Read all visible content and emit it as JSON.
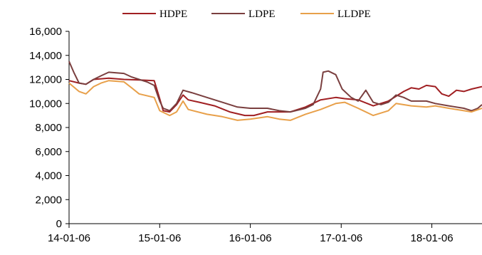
{
  "chart_data": {
    "type": "line",
    "title": "",
    "xlabel": "",
    "ylabel": "",
    "x_tick_labels": [
      "14-01-06",
      "15-01-06",
      "16-01-06",
      "17-01-06",
      "18-01-06"
    ],
    "y_tick_labels": [
      "0",
      "2,000",
      "4,000",
      "6,000",
      "8,000",
      "10,000",
      "12,000",
      "14,000",
      "16,000"
    ],
    "x_range": [
      "14-01-06",
      "18-07-27"
    ],
    "ylim": [
      0,
      16000
    ],
    "grid": false,
    "legend_position": "top-center",
    "series": [
      {
        "name": "HDPE",
        "color": "#a01f22",
        "points": [
          [
            "14-01-06",
            11900
          ],
          [
            "14-02-15",
            11700
          ],
          [
            "14-03-15",
            11600
          ],
          [
            "14-04-15",
            12000
          ],
          [
            "14-06-15",
            12100
          ],
          [
            "14-08-15",
            12000
          ],
          [
            "14-10-15",
            11950
          ],
          [
            "14-12-15",
            11900
          ],
          [
            "15-01-06",
            10400
          ],
          [
            "15-01-20",
            9400
          ],
          [
            "15-02-15",
            9300
          ],
          [
            "15-03-15",
            9900
          ],
          [
            "15-04-10",
            10700
          ],
          [
            "15-05-01",
            10300
          ],
          [
            "15-06-15",
            10100
          ],
          [
            "15-08-15",
            9800
          ],
          [
            "15-10-15",
            9300
          ],
          [
            "15-12-15",
            9000
          ],
          [
            "16-01-20",
            9000
          ],
          [
            "16-03-15",
            9300
          ],
          [
            "16-05-01",
            9300
          ],
          [
            "16-06-15",
            9300
          ],
          [
            "16-08-15",
            9700
          ],
          [
            "16-10-15",
            10300
          ],
          [
            "16-12-15",
            10500
          ],
          [
            "17-01-20",
            10400
          ],
          [
            "17-03-15",
            10300
          ],
          [
            "17-05-15",
            9800
          ],
          [
            "17-07-15",
            10200
          ],
          [
            "17-08-15",
            10600
          ],
          [
            "17-09-15",
            11000
          ],
          [
            "17-10-15",
            11300
          ],
          [
            "17-11-15",
            11200
          ],
          [
            "17-12-15",
            11500
          ],
          [
            "18-01-20",
            11400
          ],
          [
            "18-02-15",
            10800
          ],
          [
            "18-03-15",
            10600
          ],
          [
            "18-04-15",
            11100
          ],
          [
            "18-05-15",
            11000
          ],
          [
            "18-06-15",
            11200
          ],
          [
            "18-07-27",
            11400
          ]
        ]
      },
      {
        "name": "LDPE",
        "color": "#7a3f3f",
        "points": [
          [
            "14-01-06",
            13500
          ],
          [
            "14-01-25",
            12600
          ],
          [
            "14-02-15",
            11700
          ],
          [
            "14-03-15",
            11600
          ],
          [
            "14-04-15",
            12000
          ],
          [
            "14-05-15",
            12300
          ],
          [
            "14-06-15",
            12600
          ],
          [
            "14-08-15",
            12500
          ],
          [
            "14-09-15",
            12200
          ],
          [
            "14-10-15",
            12000
          ],
          [
            "14-11-15",
            11800
          ],
          [
            "14-12-15",
            11500
          ],
          [
            "15-01-06",
            10200
          ],
          [
            "15-01-20",
            9600
          ],
          [
            "15-02-15",
            9400
          ],
          [
            "15-03-15",
            10000
          ],
          [
            "15-04-10",
            11100
          ],
          [
            "15-05-15",
            10900
          ],
          [
            "15-07-15",
            10500
          ],
          [
            "15-09-15",
            10100
          ],
          [
            "15-11-15",
            9700
          ],
          [
            "16-01-06",
            9600
          ],
          [
            "16-03-15",
            9600
          ],
          [
            "16-05-01",
            9400
          ],
          [
            "16-06-15",
            9300
          ],
          [
            "16-08-15",
            9600
          ],
          [
            "16-09-15",
            9900
          ],
          [
            "16-10-15",
            11200
          ],
          [
            "16-10-25",
            12600
          ],
          [
            "16-11-15",
            12700
          ],
          [
            "16-12-15",
            12400
          ],
          [
            "17-01-10",
            11200
          ],
          [
            "17-02-15",
            10500
          ],
          [
            "17-03-15",
            10200
          ],
          [
            "17-04-15",
            11100
          ],
          [
            "17-05-15",
            10100
          ],
          [
            "17-06-15",
            9900
          ],
          [
            "17-07-15",
            10100
          ],
          [
            "17-08-15",
            10700
          ],
          [
            "17-09-15",
            10500
          ],
          [
            "17-10-15",
            10200
          ],
          [
            "17-12-15",
            10200
          ],
          [
            "18-01-20",
            10000
          ],
          [
            "18-03-15",
            9800
          ],
          [
            "18-05-15",
            9600
          ],
          [
            "18-06-15",
            9400
          ],
          [
            "18-07-10",
            9600
          ],
          [
            "18-07-27",
            9900
          ]
        ]
      },
      {
        "name": "LLDPE",
        "color": "#e8a04a",
        "points": [
          [
            "14-01-06",
            11700
          ],
          [
            "14-02-15",
            11000
          ],
          [
            "14-03-15",
            10800
          ],
          [
            "14-04-15",
            11400
          ],
          [
            "14-05-15",
            11700
          ],
          [
            "14-06-15",
            11900
          ],
          [
            "14-08-15",
            11800
          ],
          [
            "14-09-15",
            11300
          ],
          [
            "14-10-15",
            10800
          ],
          [
            "14-12-15",
            10500
          ],
          [
            "15-01-06",
            9400
          ],
          [
            "15-02-15",
            9000
          ],
          [
            "15-03-15",
            9300
          ],
          [
            "15-04-10",
            10200
          ],
          [
            "15-05-01",
            9500
          ],
          [
            "15-07-15",
            9100
          ],
          [
            "15-09-15",
            8900
          ],
          [
            "15-11-15",
            8600
          ],
          [
            "16-01-06",
            8700
          ],
          [
            "16-03-15",
            8900
          ],
          [
            "16-05-01",
            8700
          ],
          [
            "16-06-15",
            8600
          ],
          [
            "16-08-15",
            9100
          ],
          [
            "16-10-15",
            9500
          ],
          [
            "16-12-15",
            10000
          ],
          [
            "17-01-20",
            10100
          ],
          [
            "17-03-15",
            9600
          ],
          [
            "17-05-15",
            9000
          ],
          [
            "17-07-15",
            9400
          ],
          [
            "17-08-15",
            10000
          ],
          [
            "17-10-15",
            9800
          ],
          [
            "17-12-15",
            9700
          ],
          [
            "18-01-20",
            9800
          ],
          [
            "18-03-15",
            9600
          ],
          [
            "18-05-15",
            9400
          ],
          [
            "18-06-15",
            9300
          ],
          [
            "18-07-27",
            9600
          ]
        ]
      }
    ]
  }
}
